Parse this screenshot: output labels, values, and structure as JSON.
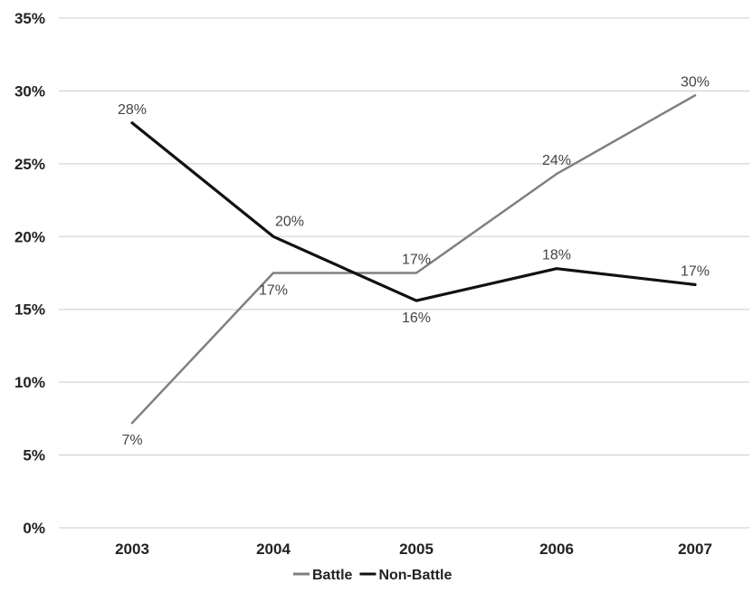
{
  "chart_data": {
    "type": "line",
    "title": "",
    "xlabel": "",
    "ylabel": "",
    "categories": [
      "2003",
      "2004",
      "2005",
      "2006",
      "2007"
    ],
    "ylim": [
      0,
      35
    ],
    "yticks": [
      0,
      5,
      10,
      15,
      20,
      25,
      30,
      35
    ],
    "ytick_labels": [
      "0%",
      "5%",
      "10%",
      "15%",
      "20%",
      "25%",
      "30%",
      "35%"
    ],
    "grid": true,
    "legend_position": "bottom",
    "series": [
      {
        "name": "Battle",
        "color": "#808080",
        "values": [
          7.2,
          17.5,
          17.5,
          24.3,
          29.7
        ],
        "labels": [
          "7%",
          "17%",
          "17%",
          "24%",
          "30%"
        ],
        "label_placement": [
          "below",
          "below",
          "above",
          "above",
          "above"
        ]
      },
      {
        "name": "Non-Battle",
        "color": "#111111",
        "values": [
          27.8,
          20.0,
          15.6,
          17.8,
          16.7
        ],
        "labels": [
          "28%",
          "20%",
          "16%",
          "18%",
          "17%"
        ],
        "label_placement": [
          "above",
          "above-right",
          "below",
          "above",
          "above"
        ]
      }
    ]
  }
}
